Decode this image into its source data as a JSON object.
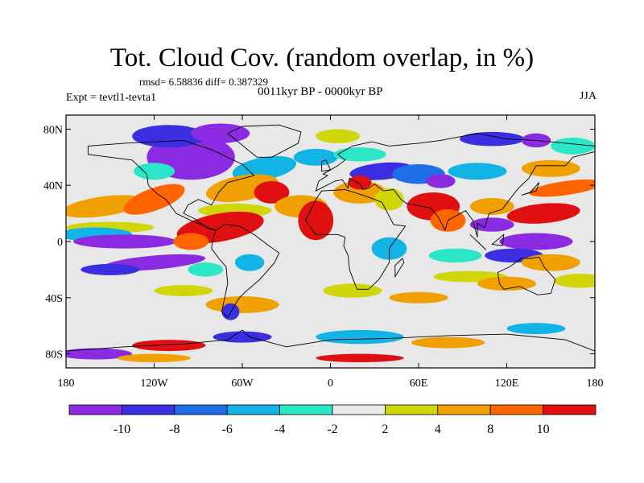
{
  "title": "Tot. Cloud Cov. (random overlap, in %)",
  "subtitle": "rmsd= 6.58836 diff= 0.387329",
  "period": "0011kyr BP - 0000kyr BP",
  "experiment": "Expt = tevtl1-tevta1",
  "season": "JJA",
  "lat_ticks": [
    "80N",
    "40N",
    "0",
    "40S",
    "80S"
  ],
  "lat_values": [
    80,
    40,
    0,
    -40,
    -80
  ],
  "lon_ticks": [
    "180",
    "120W",
    "60W",
    "0",
    "60E",
    "120E",
    "180"
  ],
  "lon_values": [
    -180,
    -120,
    -60,
    0,
    60,
    120,
    180
  ],
  "colorbar": {
    "labels": [
      "-10",
      "-8",
      "-6",
      "-4",
      "-2",
      "2",
      "4",
      "8",
      "10"
    ],
    "colors": [
      "#8a2be2",
      "#3a2fe0",
      "#1e6ee6",
      "#12b4e6",
      "#2ce6c8",
      "#e8e8e8",
      "#d0d60a",
      "#f0a000",
      "#ff6400",
      "#e01010"
    ]
  },
  "map_colors": {
    "background": "#e8e8e8",
    "purple": "#8a2be2",
    "blue": "#3a2fe0",
    "mid_blue": "#1e6ee6",
    "light_blue": "#12b4e6",
    "cyan": "#2ce6c8",
    "yellow": "#d0d60a",
    "orange": "#f0a000",
    "dark_orange": "#ff6400",
    "red": "#e01010",
    "coast": "#000000"
  }
}
